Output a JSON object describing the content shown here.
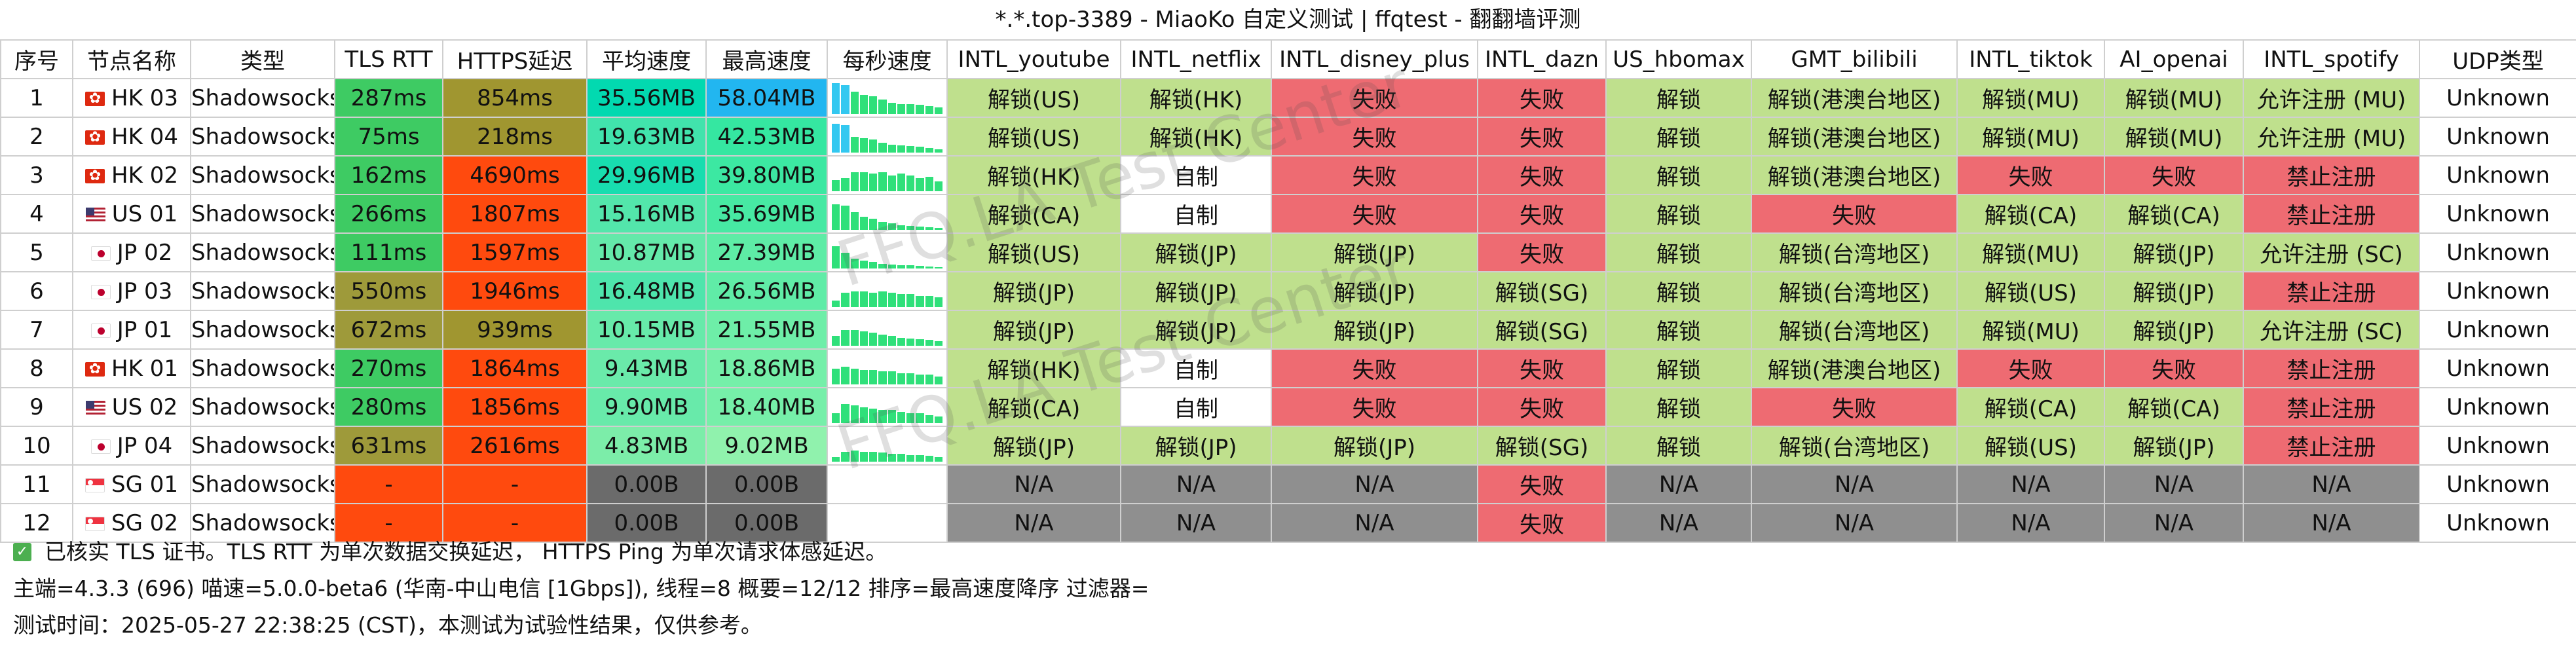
{
  "window_title": "*.*.top-3389 - MiaoKo 自定义测试 | ffqtest - 翻翻墙评测",
  "columns": [
    "序号",
    "节点名称",
    "类型",
    "TLS RTT",
    "HTTPS延迟",
    "平均速度",
    "最高速度",
    "每秒速度",
    "INTL_youtube",
    "INTL_netflix",
    "INTL_disney_plus",
    "INTL_dazn",
    "US_hbomax",
    "GMT_bilibili",
    "INTL_tiktok",
    "AI_openai",
    "INTL_spotify",
    "UDP类型"
  ],
  "watermark": "FFQ.LA Test Center",
  "colors": {
    "unlock_green": "#bfe08d",
    "fail_red": "#ee6b72",
    "na_gray": "#8f8f8f",
    "rtt_green": "#3ecb63",
    "rtt_olive": "#9e9a3a",
    "https_olive": "#a09630",
    "https_red": "#ff4a0e",
    "dash_orange": "#ff4a0e",
    "dark_gray": "#6b6b6b",
    "spark_green": "#2fe07a",
    "spark_cyan": "#33c8f0",
    "max_cyan": "#22b6f0"
  },
  "rows": [
    {
      "no": "1",
      "flag": "hk",
      "name": "HK 03",
      "type": "Shadowsocks",
      "tls": "287ms",
      "https": "854ms",
      "avg": "35.56MB",
      "max": "58.04MB",
      "spark": [
        0.95,
        0.9,
        0.7,
        0.6,
        0.55,
        0.45,
        0.35,
        0.3,
        0.3,
        0.28,
        0.25,
        0.2
      ],
      "youtube": "解锁(US)",
      "netflix": "解锁(HK)",
      "disney": "失败",
      "dazn": "失败",
      "hbomax": "解锁",
      "bilibili": "解锁(港澳台地区)",
      "tiktok": "解锁(MU)",
      "openai": "解锁(MU)",
      "spotify": "允许注册 (MU)",
      "udp": "Unknown"
    },
    {
      "no": "2",
      "flag": "hk",
      "name": "HK 04",
      "type": "Shadowsocks",
      "tls": "75ms",
      "https": "218ms",
      "avg": "19.63MB",
      "max": "42.53MB",
      "spark": [
        0.9,
        0.85,
        0.5,
        0.45,
        0.4,
        0.3,
        0.25,
        0.22,
        0.2,
        0.18,
        0.15,
        0.1
      ],
      "youtube": "解锁(US)",
      "netflix": "解锁(HK)",
      "disney": "失败",
      "dazn": "失败",
      "hbomax": "解锁",
      "bilibili": "解锁(港澳台地区)",
      "tiktok": "解锁(MU)",
      "openai": "解锁(MU)",
      "spotify": "允许注册 (MU)",
      "udp": "Unknown"
    },
    {
      "no": "3",
      "flag": "hk",
      "name": "HK 02",
      "type": "Shadowsocks",
      "tls": "162ms",
      "https": "4690ms",
      "avg": "29.96MB",
      "max": "39.80MB",
      "spark": [
        0.35,
        0.4,
        0.6,
        0.6,
        0.55,
        0.6,
        0.5,
        0.55,
        0.5,
        0.4,
        0.45,
        0.3
      ],
      "youtube": "解锁(HK)",
      "netflix": "自制",
      "disney": "失败",
      "dazn": "失败",
      "hbomax": "解锁",
      "bilibili": "解锁(港澳台地区)",
      "tiktok": "失败",
      "openai": "失败",
      "spotify": "禁止注册",
      "udp": "Unknown"
    },
    {
      "no": "4",
      "flag": "us",
      "name": "US 01",
      "type": "Shadowsocks",
      "tls": "266ms",
      "https": "1807ms",
      "avg": "15.16MB",
      "max": "35.69MB",
      "spark": [
        0.8,
        0.75,
        0.55,
        0.4,
        0.35,
        0.25,
        0.2,
        0.15,
        0.12,
        0.1,
        0.08,
        0.06
      ],
      "youtube": "解锁(CA)",
      "netflix": "自制",
      "disney": "失败",
      "dazn": "失败",
      "hbomax": "解锁",
      "bilibili": "失败",
      "tiktok": "解锁(CA)",
      "openai": "解锁(CA)",
      "spotify": "禁止注册",
      "udp": "Unknown"
    },
    {
      "no": "5",
      "flag": "jp",
      "name": "JP 02",
      "type": "Shadowsocks",
      "tls": "111ms",
      "https": "1597ms",
      "avg": "10.87MB",
      "max": "27.39MB",
      "spark": [
        0.7,
        0.5,
        0.3,
        0.25,
        0.2,
        0.15,
        0.12,
        0.1,
        0.1,
        0.08,
        0.06,
        0.05
      ],
      "youtube": "解锁(US)",
      "netflix": "解锁(JP)",
      "disney": "解锁(JP)",
      "dazn": "失败",
      "hbomax": "解锁",
      "bilibili": "解锁(台湾地区)",
      "tiktok": "解锁(MU)",
      "openai": "解锁(JP)",
      "spotify": "允许注册 (SC)",
      "udp": "Unknown"
    },
    {
      "no": "6",
      "flag": "jp",
      "name": "JP 03",
      "type": "Shadowsocks",
      "tls": "550ms",
      "https": "1946ms",
      "avg": "16.48MB",
      "max": "26.56MB",
      "spark": [
        0.2,
        0.45,
        0.5,
        0.5,
        0.45,
        0.5,
        0.45,
        0.4,
        0.4,
        0.35,
        0.35,
        0.3
      ],
      "youtube": "解锁(JP)",
      "netflix": "解锁(JP)",
      "disney": "解锁(JP)",
      "dazn": "解锁(SG)",
      "hbomax": "解锁",
      "bilibili": "解锁(台湾地区)",
      "tiktok": "解锁(US)",
      "openai": "解锁(JP)",
      "spotify": "禁止注册",
      "udp": "Unknown"
    },
    {
      "no": "7",
      "flag": "jp",
      "name": "JP 01",
      "type": "Shadowsocks",
      "tls": "672ms",
      "https": "939ms",
      "avg": "10.15MB",
      "max": "21.55MB",
      "spark": [
        0.3,
        0.5,
        0.5,
        0.45,
        0.4,
        0.35,
        0.3,
        0.25,
        0.22,
        0.2,
        0.18,
        0.15
      ],
      "youtube": "解锁(JP)",
      "netflix": "解锁(JP)",
      "disney": "解锁(JP)",
      "dazn": "解锁(SG)",
      "hbomax": "解锁",
      "bilibili": "解锁(台湾地区)",
      "tiktok": "解锁(MU)",
      "openai": "解锁(JP)",
      "spotify": "允许注册 (SC)",
      "udp": "Unknown"
    },
    {
      "no": "8",
      "flag": "hk",
      "name": "HK 01",
      "type": "Shadowsocks",
      "tls": "270ms",
      "https": "1864ms",
      "avg": "9.43MB",
      "max": "18.86MB",
      "spark": [
        0.5,
        0.55,
        0.5,
        0.45,
        0.45,
        0.4,
        0.4,
        0.35,
        0.35,
        0.3,
        0.3,
        0.25
      ],
      "youtube": "解锁(HK)",
      "netflix": "自制",
      "disney": "失败",
      "dazn": "失败",
      "hbomax": "解锁",
      "bilibili": "解锁(港澳台地区)",
      "tiktok": "失败",
      "openai": "失败",
      "spotify": "禁止注册",
      "udp": "Unknown"
    },
    {
      "no": "9",
      "flag": "us",
      "name": "US 02",
      "type": "Shadowsocks",
      "tls": "280ms",
      "https": "1856ms",
      "avg": "9.90MB",
      "max": "18.40MB",
      "spark": [
        0.3,
        0.6,
        0.55,
        0.5,
        0.45,
        0.4,
        0.4,
        0.35,
        0.3,
        0.3,
        0.25,
        0.2
      ],
      "youtube": "解锁(CA)",
      "netflix": "自制",
      "disney": "失败",
      "dazn": "失败",
      "hbomax": "解锁",
      "bilibili": "失败",
      "tiktok": "解锁(CA)",
      "openai": "解锁(CA)",
      "spotify": "禁止注册",
      "udp": "Unknown"
    },
    {
      "no": "10",
      "flag": "jp",
      "name": "JP 04",
      "type": "Shadowsocks",
      "tls": "631ms",
      "https": "2616ms",
      "avg": "4.83MB",
      "max": "9.02MB",
      "spark": [
        0.15,
        0.3,
        0.35,
        0.3,
        0.3,
        0.28,
        0.25,
        0.25,
        0.2,
        0.2,
        0.18,
        0.15
      ],
      "youtube": "解锁(JP)",
      "netflix": "解锁(JP)",
      "disney": "解锁(JP)",
      "dazn": "解锁(SG)",
      "hbomax": "解锁",
      "bilibili": "解锁(台湾地区)",
      "tiktok": "解锁(US)",
      "openai": "解锁(JP)",
      "spotify": "禁止注册",
      "udp": "Unknown"
    },
    {
      "no": "11",
      "flag": "sg",
      "name": "SG 01",
      "type": "Shadowsocks",
      "tls": "-",
      "https": "-",
      "avg": "0.00B",
      "max": "0.00B",
      "spark": [],
      "youtube": "N/A",
      "netflix": "N/A",
      "disney": "N/A",
      "dazn": "失败",
      "hbomax": "N/A",
      "bilibili": "N/A",
      "tiktok": "N/A",
      "openai": "N/A",
      "spotify": "N/A",
      "udp": "Unknown"
    },
    {
      "no": "12",
      "flag": "sg",
      "name": "SG 02",
      "type": "Shadowsocks",
      "tls": "-",
      "https": "-",
      "avg": "0.00B",
      "max": "0.00B",
      "spark": [],
      "youtube": "N/A",
      "netflix": "N/A",
      "disney": "N/A",
      "dazn": "失败",
      "hbomax": "N/A",
      "bilibili": "N/A",
      "tiktok": "N/A",
      "openai": "N/A",
      "spotify": "N/A",
      "udp": "Unknown"
    }
  ],
  "footer": {
    "note": "已核实 TLS 证书。TLS RTT 为单次数据交换延迟， HTTPS Ping 为单次请求体感延迟。",
    "info": "主端=4.3.3 (696) 喵速=5.0.0-beta6 (华南-中山电信 [1Gbps]), 线程=8 概要=12/12 排序=最高速度降序 过滤器=",
    "time": "测试时间：2025-05-27 22:38:25 (CST)，本测试为试验性结果，仅供参考。"
  }
}
